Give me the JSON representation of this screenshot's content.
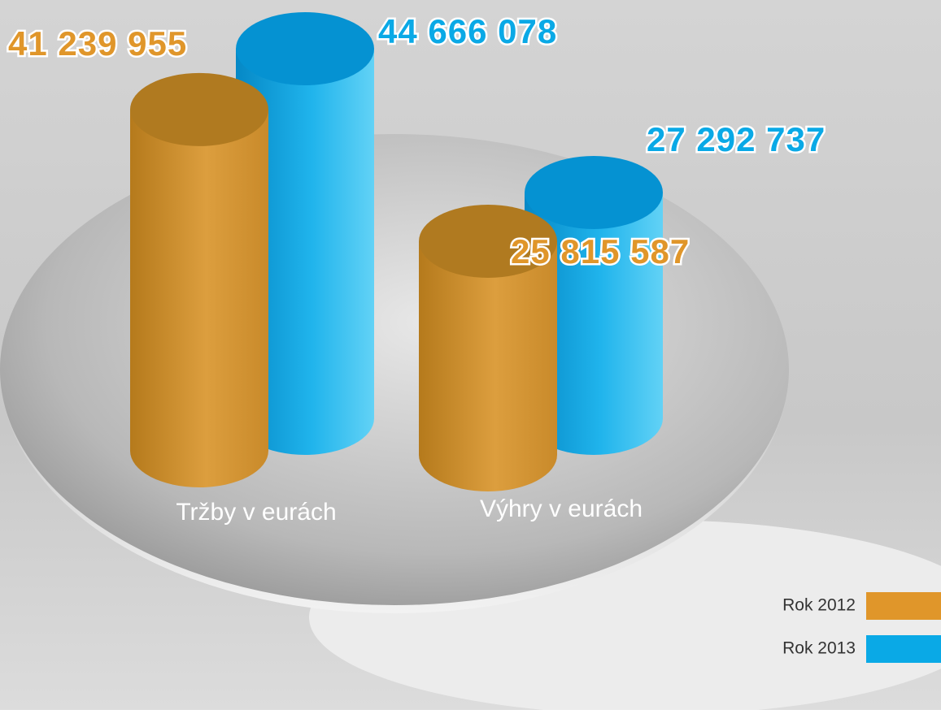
{
  "chart_data": {
    "type": "bar",
    "categories": [
      "Tržby v eurách",
      "Výhry v eurách"
    ],
    "series": [
      {
        "name": "Rok 2012",
        "color": "#e0962a",
        "values": [
          41239955,
          25815587
        ],
        "value_labels": [
          "41 239 955",
          "25 815 587"
        ]
      },
      {
        "name": "Rok 2013",
        "color": "#0aa9e6",
        "values": [
          44666078,
          27292737
        ],
        "value_labels": [
          "44 666 078",
          "27 292 737"
        ]
      }
    ]
  }
}
